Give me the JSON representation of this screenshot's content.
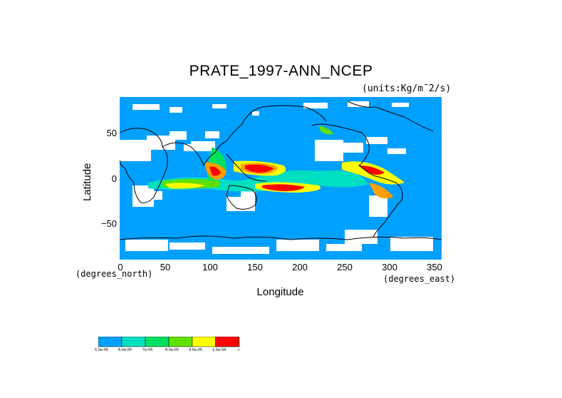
{
  "title": "PRATE_1997-ANN_NCEP",
  "units": "(units:Kg/m¯2/s)",
  "y_axis": {
    "label": "Latitude",
    "unit_label": "(degrees_north)",
    "ticks": [
      "50",
      "0",
      "−50"
    ]
  },
  "x_axis": {
    "label": "Longitude",
    "unit_label": "(degrees_east)",
    "ticks": [
      "0",
      "50",
      "100",
      "150",
      "200",
      "250",
      "300",
      "350"
    ]
  },
  "map": {
    "lon_range": [
      0,
      360
    ],
    "lat_range": [
      -90,
      90
    ],
    "background_color": "#00a0ff",
    "coastline_color": "#000000"
  },
  "legend": {
    "colors": [
      "#00a0ff",
      "#00e0c0",
      "#00e060",
      "#60e000",
      "#ffff00",
      "#ffa000",
      "#ff0000"
    ],
    "labels": [
      "5.0e-05",
      "6.0e-05",
      "7e-05",
      "8.0e-05",
      "9.0e-05",
      "1.0e-04",
      "∞"
    ]
  }
}
